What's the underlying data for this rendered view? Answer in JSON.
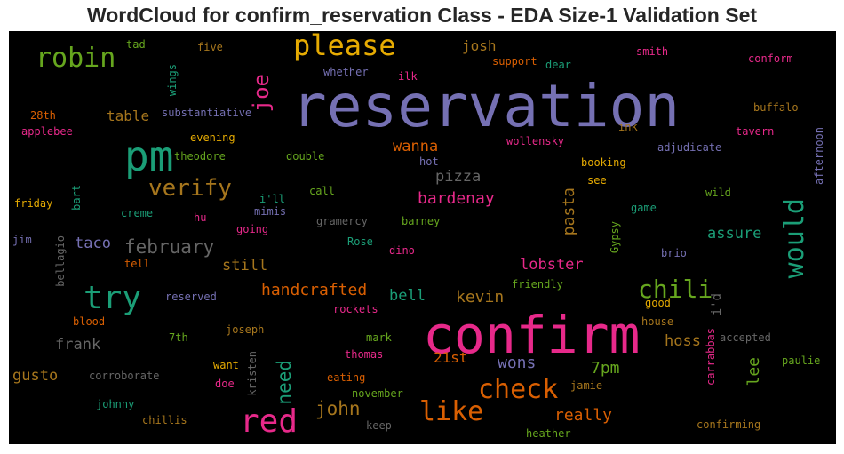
{
  "chart_data": {
    "type": "wordcloud",
    "title": "WordCloud for confirm_reservation Class - EDA Size-1 Validation Set",
    "background": "#000000",
    "words": [
      {
        "text": "reservation",
        "color": "#7570b3"
      },
      {
        "text": "confirm",
        "color": "#e7298a"
      },
      {
        "text": "pm",
        "color": "#1b9e77"
      },
      {
        "text": "try",
        "color": "#1b9e77"
      },
      {
        "text": "red",
        "color": "#e7298a"
      },
      {
        "text": "please",
        "color": "#e6ab02"
      },
      {
        "text": "robin",
        "color": "#66a61e"
      },
      {
        "text": "would",
        "color": "#1b9e77"
      },
      {
        "text": "like",
        "color": "#d95f02"
      },
      {
        "text": "check",
        "color": "#d95f02"
      },
      {
        "text": "verify",
        "color": "#a6761d"
      },
      {
        "text": "chili",
        "color": "#66a61e"
      },
      {
        "text": "joe",
        "color": "#e7298a"
      },
      {
        "text": "february",
        "color": "#666666"
      },
      {
        "text": "john",
        "color": "#a6761d"
      },
      {
        "text": "need",
        "color": "#1b9e77"
      },
      {
        "text": "handcrafted",
        "color": "#d95f02"
      },
      {
        "text": "kevin",
        "color": "#a6761d"
      },
      {
        "text": "wons",
        "color": "#7570b3"
      },
      {
        "text": "7pm",
        "color": "#66a61e"
      },
      {
        "text": "lee",
        "color": "#66a61e"
      },
      {
        "text": "really",
        "color": "#d95f02"
      },
      {
        "text": "bardenay",
        "color": "#e7298a"
      },
      {
        "text": "pasta",
        "color": "#a6761d"
      },
      {
        "text": "lobster",
        "color": "#e7298a"
      },
      {
        "text": "hoss",
        "color": "#a6761d"
      },
      {
        "text": "assure",
        "color": "#1b9e77"
      },
      {
        "text": "still",
        "color": "#a6761d"
      },
      {
        "text": "taco",
        "color": "#7570b3"
      },
      {
        "text": "bell",
        "color": "#1b9e77"
      },
      {
        "text": "pizza",
        "color": "#666666"
      },
      {
        "text": "wanna",
        "color": "#d95f02"
      },
      {
        "text": "frank",
        "color": "#666666"
      },
      {
        "text": "gusto",
        "color": "#a6761d"
      },
      {
        "text": "table",
        "color": "#a6761d"
      },
      {
        "text": "josh",
        "color": "#a6761d"
      },
      {
        "text": "21st",
        "color": "#d95f02"
      },
      {
        "text": "i'd",
        "color": "#666666"
      },
      {
        "text": "tad",
        "color": "#66a61e"
      },
      {
        "text": "five",
        "color": "#a6761d"
      },
      {
        "text": "wings",
        "color": "#1b9e77"
      },
      {
        "text": "whether",
        "color": "#7570b3"
      },
      {
        "text": "support",
        "color": "#d95f02"
      },
      {
        "text": "dear",
        "color": "#1b9e77"
      },
      {
        "text": "smith",
        "color": "#e7298a"
      },
      {
        "text": "conform",
        "color": "#e7298a"
      },
      {
        "text": "ilk",
        "color": "#e7298a"
      },
      {
        "text": "substantiative",
        "color": "#7570b3"
      },
      {
        "text": "28th",
        "color": "#d95f02"
      },
      {
        "text": "applebee",
        "color": "#e7298a"
      },
      {
        "text": "evening",
        "color": "#e6ab02"
      },
      {
        "text": "ink",
        "color": "#a6761d"
      },
      {
        "text": "buffalo",
        "color": "#a6761d"
      },
      {
        "text": "tavern",
        "color": "#e7298a"
      },
      {
        "text": "afternoon",
        "color": "#7570b3"
      },
      {
        "text": "wollensky",
        "color": "#e7298a"
      },
      {
        "text": "adjudicate",
        "color": "#7570b3"
      },
      {
        "text": "theodore",
        "color": "#66a61e"
      },
      {
        "text": "double",
        "color": "#66a61e"
      },
      {
        "text": "hot",
        "color": "#7570b3"
      },
      {
        "text": "booking",
        "color": "#e6ab02"
      },
      {
        "text": "bart",
        "color": "#1b9e77"
      },
      {
        "text": "i'll",
        "color": "#1b9e77"
      },
      {
        "text": "call",
        "color": "#66a61e"
      },
      {
        "text": "see",
        "color": "#e6ab02"
      },
      {
        "text": "wild",
        "color": "#66a61e"
      },
      {
        "text": "friday",
        "color": "#e6ab02"
      },
      {
        "text": "mimis",
        "color": "#7570b3"
      },
      {
        "text": "creme",
        "color": "#1b9e77"
      },
      {
        "text": "hu",
        "color": "#e7298a"
      },
      {
        "text": "gramercy",
        "color": "#666666"
      },
      {
        "text": "barney",
        "color": "#66a61e"
      },
      {
        "text": "game",
        "color": "#1b9e77"
      },
      {
        "text": "jim",
        "color": "#7570b3"
      },
      {
        "text": "going",
        "color": "#e7298a"
      },
      {
        "text": "Gypsy",
        "color": "#66a61e"
      },
      {
        "text": "Rose",
        "color": "#1b9e77"
      },
      {
        "text": "dino",
        "color": "#e7298a"
      },
      {
        "text": "brio",
        "color": "#7570b3"
      },
      {
        "text": "bellagio",
        "color": "#666666"
      },
      {
        "text": "tell",
        "color": "#d95f02"
      },
      {
        "text": "friendly",
        "color": "#66a61e"
      },
      {
        "text": "reserved",
        "color": "#7570b3"
      },
      {
        "text": "rockets",
        "color": "#e7298a"
      },
      {
        "text": "good",
        "color": "#e6ab02"
      },
      {
        "text": "blood",
        "color": "#d95f02"
      },
      {
        "text": "house",
        "color": "#a6761d"
      },
      {
        "text": "joseph",
        "color": "#a6761d"
      },
      {
        "text": "7th",
        "color": "#66a61e"
      },
      {
        "text": "mark",
        "color": "#66a61e"
      },
      {
        "text": "carrabbas",
        "color": "#e7298a"
      },
      {
        "text": "accepted",
        "color": "#666666"
      },
      {
        "text": "thomas",
        "color": "#e7298a"
      },
      {
        "text": "corroborate",
        "color": "#666666"
      },
      {
        "text": "want",
        "color": "#e6ab02"
      },
      {
        "text": "kristen",
        "color": "#666666"
      },
      {
        "text": "eating",
        "color": "#d95f02"
      },
      {
        "text": "paulie",
        "color": "#66a61e"
      },
      {
        "text": "doe",
        "color": "#e7298a"
      },
      {
        "text": "november",
        "color": "#66a61e"
      },
      {
        "text": "jamie",
        "color": "#a6761d"
      },
      {
        "text": "johnny",
        "color": "#1b9e77"
      },
      {
        "text": "chillis",
        "color": "#a6761d"
      },
      {
        "text": "keep",
        "color": "#666666"
      },
      {
        "text": "heather",
        "color": "#66a61e"
      },
      {
        "text": "confirming",
        "color": "#a6761d"
      }
    ]
  }
}
